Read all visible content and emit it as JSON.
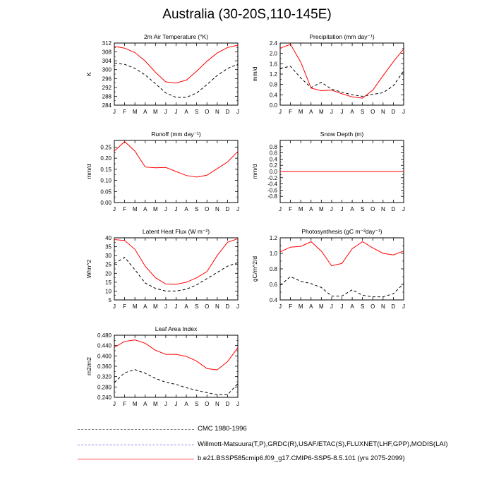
{
  "title": "Australia (30-20S,110-145E)",
  "months": [
    "J",
    "F",
    "M",
    "A",
    "M",
    "J",
    "J",
    "A",
    "S",
    "O",
    "N",
    "D",
    "J"
  ],
  "chart_data": [
    {
      "type": "line",
      "title": "2m Air Temperature (°K)",
      "ylabel": "K",
      "ylim": [
        284,
        312
      ],
      "yticks": [
        "284",
        "288",
        "292",
        "296",
        "300",
        "304",
        "308",
        "312"
      ],
      "series": [
        {
          "role": "obs",
          "values": [
            303.0,
            302.4,
            300.6,
            297.6,
            293.7,
            289.5,
            287.5,
            287.5,
            289.5,
            293.3,
            297.4,
            300.5,
            302.5
          ]
        },
        {
          "role": "model",
          "values": [
            310.5,
            309.7,
            307.7,
            303.9,
            298.8,
            294.5,
            294.0,
            295.3,
            299.3,
            303.8,
            307.5,
            310.0,
            311.0
          ]
        }
      ]
    },
    {
      "type": "line",
      "title": "Precipitation (mm day⁻¹)",
      "ylabel": "mm/d",
      "ylim": [
        0,
        2.4
      ],
      "yticks": [
        "0.0",
        "0.4",
        "0.8",
        "1.2",
        "1.6",
        "2.0",
        "2.4"
      ],
      "series": [
        {
          "role": "obs",
          "values": [
            1.42,
            1.5,
            1.05,
            0.68,
            0.88,
            0.62,
            0.5,
            0.4,
            0.34,
            0.42,
            0.48,
            0.75,
            1.32
          ]
        },
        {
          "role": "model",
          "values": [
            2.2,
            2.35,
            1.66,
            0.66,
            0.56,
            0.58,
            0.44,
            0.32,
            0.27,
            0.58,
            1.14,
            1.68,
            2.17
          ]
        }
      ]
    },
    {
      "type": "line",
      "title": "Runoff (mm day⁻¹)",
      "ylabel": "mm/d",
      "ylim": [
        0,
        0.28
      ],
      "yticks": [
        "0.00",
        "0.05",
        "0.10",
        "0.15",
        "0.20",
        "0.25"
      ],
      "tickvals": [
        0,
        0.05,
        0.1,
        0.15,
        0.2,
        0.25
      ],
      "series": [
        {
          "role": "model",
          "values": [
            0.232,
            0.275,
            0.232,
            0.16,
            0.157,
            0.158,
            0.14,
            0.122,
            0.115,
            0.123,
            0.153,
            0.183,
            0.23
          ]
        }
      ]
    },
    {
      "type": "line",
      "title": "Snow Depth (m)",
      "ylabel": "mm/d",
      "ylim": [
        -1,
        1
      ],
      "yticks": [
        "-0.8",
        "-0.6",
        "-0.4",
        "-0.2",
        "0.0",
        "0.2",
        "0.4",
        "0.6",
        "0.8"
      ],
      "tickvals": [
        -0.8,
        -0.6,
        -0.4,
        -0.2,
        0,
        0.2,
        0.4,
        0.6,
        0.8
      ],
      "series": [
        {
          "role": "obs",
          "values": [
            0,
            0,
            0,
            0,
            0,
            0,
            0,
            0,
            0,
            0,
            0,
            0,
            0
          ]
        },
        {
          "role": "model",
          "values": [
            0,
            0,
            0,
            0,
            0,
            0,
            0,
            0,
            0,
            0,
            0,
            0,
            0
          ]
        }
      ]
    },
    {
      "type": "line",
      "title": "Latent Heat Flux (W m⁻²)",
      "ylabel": "W/m^2",
      "ylim": [
        5,
        40
      ],
      "yticks": [
        "5",
        "10",
        "15",
        "20",
        "25",
        "30",
        "35",
        "40"
      ],
      "series": [
        {
          "role": "obs",
          "values": [
            25.5,
            29.0,
            22.0,
            14.5,
            11.5,
            10.0,
            10.0,
            11.0,
            13.5,
            17.0,
            20.5,
            24.0,
            26.0
          ]
        },
        {
          "role": "model",
          "values": [
            39.0,
            38.5,
            33.5,
            24.0,
            17.5,
            14.0,
            13.8,
            15.0,
            17.5,
            21.0,
            30.0,
            37.5,
            39.5
          ]
        }
      ]
    },
    {
      "type": "line",
      "title": "Photosynthesis (gC m⁻²day⁻¹)",
      "ylabel": "gC/m^2/d",
      "ylim": [
        0.4,
        1.2
      ],
      "yticks": [
        "0.4",
        "0.6",
        "0.8",
        "1.0",
        "1.2"
      ],
      "series": [
        {
          "role": "obs",
          "values": [
            0.59,
            0.7,
            0.64,
            0.61,
            0.56,
            0.45,
            0.45,
            0.53,
            0.46,
            0.44,
            0.44,
            0.48,
            0.61
          ]
        },
        {
          "role": "model",
          "values": [
            1.02,
            1.08,
            1.09,
            1.15,
            1.03,
            0.84,
            0.87,
            1.06,
            1.15,
            1.07,
            1.0,
            0.98,
            1.03
          ]
        }
      ]
    },
    {
      "type": "line",
      "title": "Leaf Area Index",
      "ylabel": "m2/m2",
      "ylim": [
        0.24,
        0.48
      ],
      "yticks": [
        "0.240",
        "0.280",
        "0.320",
        "0.360",
        "0.400",
        "0.440",
        "0.480"
      ],
      "series": [
        {
          "role": "obs",
          "values": [
            0.297,
            0.335,
            0.347,
            0.333,
            0.313,
            0.298,
            0.29,
            0.277,
            0.267,
            0.258,
            0.25,
            0.25,
            0.293
          ]
        },
        {
          "role": "model",
          "values": [
            0.433,
            0.456,
            0.462,
            0.449,
            0.422,
            0.406,
            0.406,
            0.398,
            0.38,
            0.351,
            0.346,
            0.378,
            0.432
          ]
        }
      ]
    }
  ],
  "legend": [
    {
      "label": "CMC 1980-1996",
      "color": "#777777",
      "dash": true
    },
    {
      "label": "Willmott-Matsuura(T,P),GRDC(R),USAF/ETAC(S),FLUXNET(LHF,GPP),MODIS(LAI)",
      "color": "#8888ee",
      "dash": true
    },
    {
      "label": "b.e21.BSSP585cmip6.f09_g17.CMIP6-SSP5-8.5.101 (yrs 2075-2099)",
      "color": "#ff4444",
      "dash": false
    }
  ],
  "colors": {
    "obs": "#000000",
    "model": "#ff0000"
  }
}
